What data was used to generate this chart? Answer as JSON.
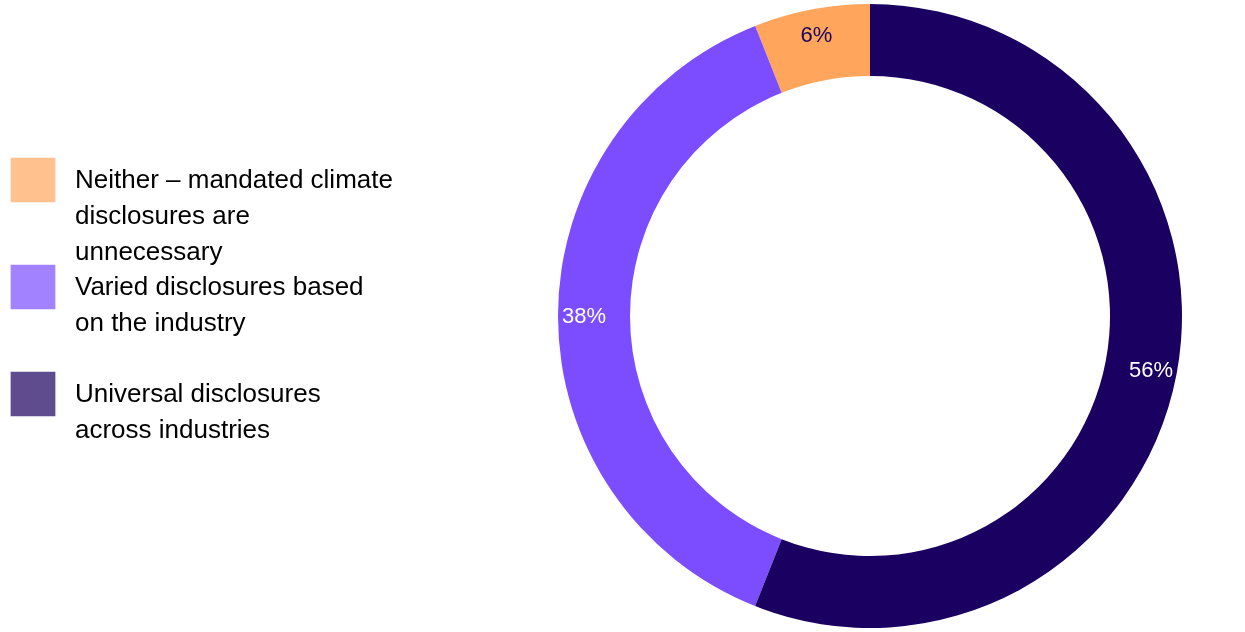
{
  "chart_data": {
    "type": "donut",
    "categories": [
      "Neither – mandated climate disclosures are unnecessary",
      "Varied disclosures based on the industry",
      "Universal disclosures across industries"
    ],
    "values": [
      6,
      38,
      56
    ],
    "colors": [
      "#ffa65c",
      "#7b4dff",
      "#1a0060"
    ],
    "value_labels": [
      "6%",
      "38%",
      "56%"
    ],
    "legend": "left"
  }
}
